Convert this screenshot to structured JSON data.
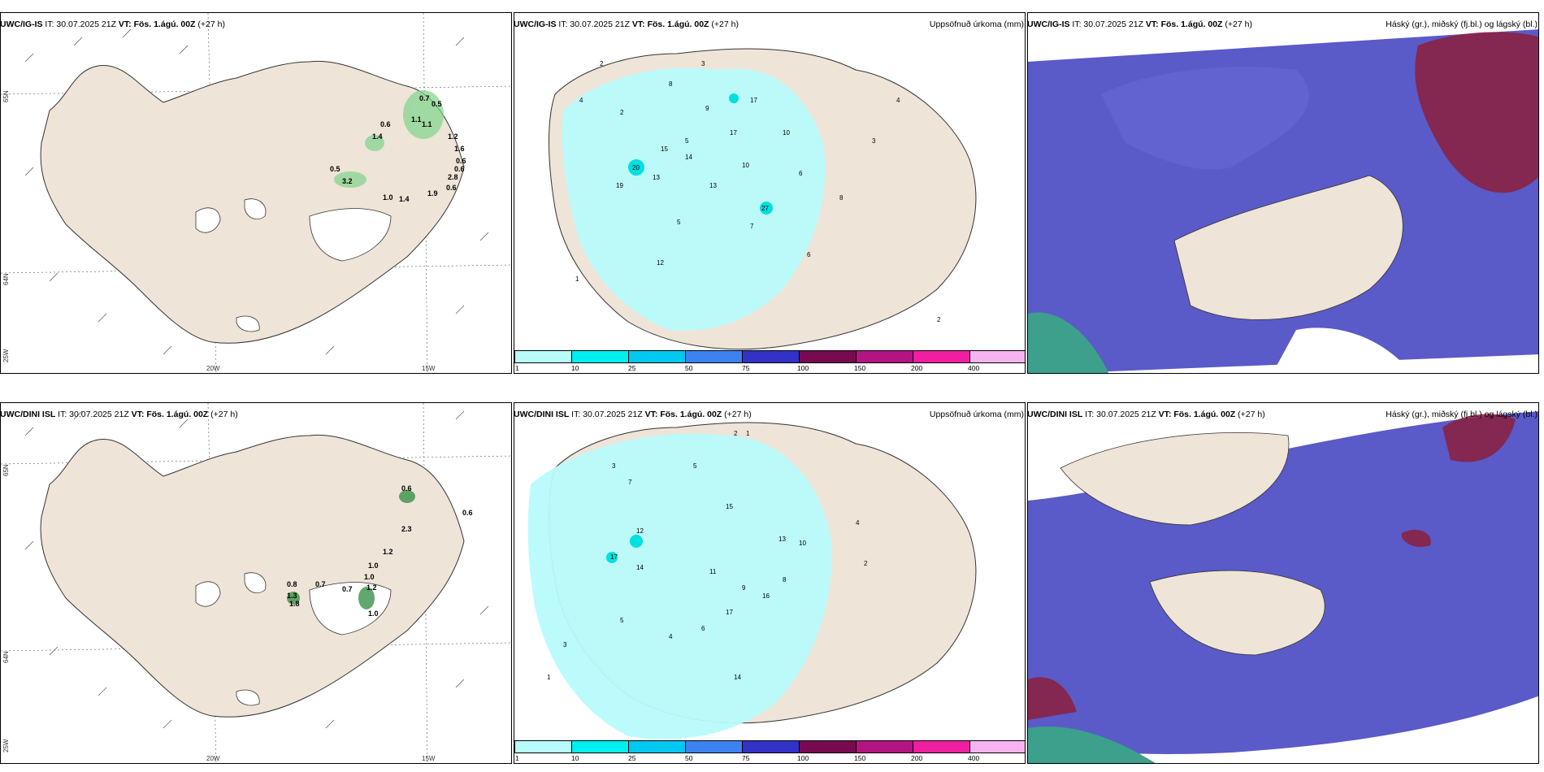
{
  "rows": [
    {
      "model": "UWC/IG-IS",
      "it": "IT: 30.07.2025 21Z",
      "vt_label": "VT:",
      "vt_value": "Fös. 1.ágú. 00Z",
      "lead": "(+27 h)",
      "wind_values": [
        "0.7",
        "0.5",
        "0.6",
        "1.1",
        "1.1",
        "1.4",
        "1.2",
        "1.6",
        "0.6",
        "0.6",
        "0.5",
        "3.2",
        "2.8",
        "1.0",
        "1.4",
        "1.9",
        "0.6"
      ],
      "precip_values": [
        "2",
        "3",
        "4",
        "2",
        "8",
        "5",
        "9",
        "17",
        "13",
        "10",
        "15",
        "17",
        "14",
        "20",
        "19",
        "27",
        "13",
        "12",
        "10",
        "7",
        "6",
        "8",
        "3",
        "4",
        "5",
        "1",
        "2",
        "6"
      ]
    },
    {
      "model": "UWC/DINI ISL",
      "it": "IT: 30.07.2025 21Z",
      "vt_label": "VT:",
      "vt_value": "Fös. 1.ágú. 00Z",
      "lead": "(+27 h)",
      "wind_values": [
        "0.6",
        "0.6",
        "2.3",
        "1.2",
        "1.0",
        "1.0",
        "0.8",
        "1.3",
        "0.7",
        "0.7",
        "1.2",
        "1.0",
        "1.8"
      ],
      "precip_values": [
        "2",
        "1",
        "3",
        "5",
        "7",
        "17",
        "12",
        "15",
        "13",
        "14",
        "16",
        "10",
        "11",
        "9",
        "8",
        "4",
        "6",
        "17",
        "14",
        "3",
        "2",
        "1",
        "5",
        "4"
      ]
    }
  ],
  "precip_title": "Uppsöfnuð úrkoma (mm)",
  "cloud_title": "Háský (gr.), miðský (fj.bl.) og lágský (bl.)",
  "legend": {
    "ticks": [
      "1",
      "10",
      "25",
      "50",
      "75",
      "100",
      "150",
      "200",
      "400"
    ],
    "colors": [
      "#b8fbfb",
      "#00f0f0",
      "#00c8f0",
      "#3c82f0",
      "#3232c8",
      "#780a50",
      "#b41482",
      "#f01ea0",
      "#f5b4f0"
    ]
  },
  "axes": {
    "lon_20w": "20W",
    "lon_15w": "15W",
    "lat_65n": "65N",
    "lat_64n": "64N",
    "lon_25w": "25W"
  },
  "colors": {
    "land": "#efe4d8",
    "sea": "#ffffff",
    "precip_light": "#b8fbfb",
    "cloud_low": "#5a5ac8",
    "cloud_high": "#8c1e3c"
  }
}
